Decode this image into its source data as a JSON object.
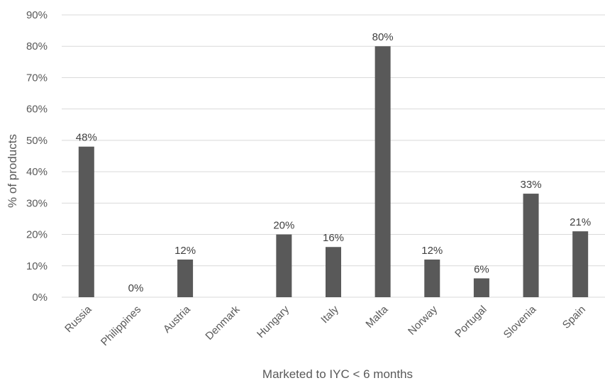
{
  "chart_data": {
    "type": "bar",
    "categories": [
      "Russia",
      "Philippines",
      "Austria",
      "Denmark",
      "Hungary",
      "Italy",
      "Malta",
      "Norway",
      "Portugal",
      "Slovenia",
      "Spain"
    ],
    "values": [
      48,
      0,
      12,
      null,
      20,
      16,
      80,
      12,
      6,
      33,
      21
    ],
    "data_labels": [
      "48%",
      "0%",
      "12%",
      "",
      "20%",
      "16%",
      "80%",
      "12%",
      "6%",
      "33%",
      "21%"
    ],
    "y_ticks": [
      "0%",
      "10%",
      "20%",
      "30%",
      "40%",
      "50%",
      "60%",
      "70%",
      "80%",
      "90%"
    ],
    "ylim": [
      0,
      90
    ],
    "xlabel": "Marketed to IYC < 6 months",
    "ylabel": "% of products",
    "grid": true,
    "bar_color": "#595959"
  }
}
